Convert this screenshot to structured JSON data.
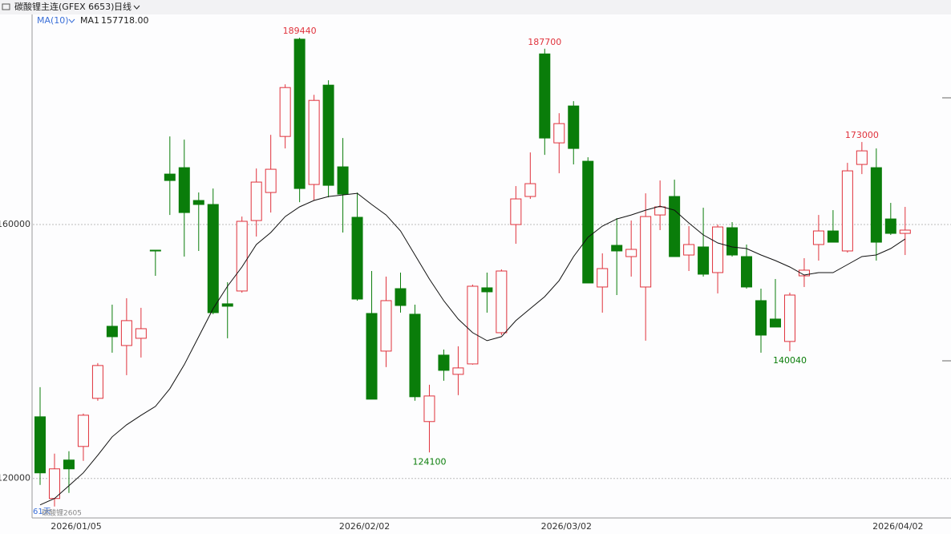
{
  "chart_data": {
    "type": "candlestick",
    "title": "碳酸锂主连(GFEX 6653)",
    "period": "日线",
    "count_label": "61天",
    "contract": "碳酸锂2605",
    "up_color": "#e0323c",
    "down_color": "#0a7d0a",
    "ylim": [
      113900,
      193100
    ],
    "yticks": [
      120000,
      160000
    ],
    "grid": true,
    "categories": [
      "2026/01/05",
      null,
      null,
      null,
      null,
      null,
      null,
      null,
      null,
      null,
      null,
      null,
      null,
      null,
      null,
      null,
      null,
      null,
      null,
      null,
      "2026/02/02",
      null,
      null,
      null,
      null,
      null,
      null,
      null,
      null,
      null,
      null,
      null,
      null,
      null,
      "2026/03/02",
      null,
      null,
      null,
      null,
      null,
      null,
      null,
      null,
      null,
      null,
      null,
      null,
      null,
      null,
      null,
      null,
      null,
      null,
      null,
      null,
      null,
      null,
      "2026/04/02",
      null,
      null,
      null
    ],
    "open": [
      129710,
      116840,
      122900,
      125040,
      132620,
      143970,
      140940,
      142080,
      155960,
      167950,
      168960,
      163790,
      163160,
      147510,
      149530,
      160630,
      165050,
      173880,
      189200,
      166310,
      181960,
      169090,
      161140,
      145990,
      140060,
      149900,
      145870,
      128960,
      139430,
      136400,
      138040,
      150030,
      142960,
      160000,
      164420,
      186880,
      172870,
      178680,
      169970,
      150160,
      156720,
      154950,
      150160,
      161510,
      164420,
      155200,
      156470,
      152430,
      159500,
      154950,
      148010,
      145110,
      141580,
      151920,
      156850,
      158990,
      155840,
      169470,
      168960,
      160880,
      158610
    ],
    "close": [
      120880,
      121510,
      121510,
      129960,
      137790,
      142330,
      144860,
      143590,
      155840,
      166940,
      161890,
      163160,
      146120,
      147130,
      160510,
      166690,
      168710,
      181580,
      165680,
      179560,
      166180,
      164800,
      148260,
      132490,
      148010,
      147250,
      132870,
      132990,
      137030,
      137410,
      150280,
      149400,
      152680,
      164040,
      166440,
      173630,
      175900,
      171990,
      150790,
      153060,
      155840,
      156090,
      161260,
      162780,
      154950,
      156850,
      152180,
      159620,
      155200,
      150160,
      142580,
      143850,
      148890,
      152810,
      158990,
      157220,
      168460,
      171610,
      157220,
      158610,
      159120
    ],
    "high": [
      134380,
      123910,
      124290,
      130220,
      138170,
      147380,
      148390,
      146880,
      155960,
      173880,
      173380,
      165050,
      165680,
      150910,
      161260,
      168830,
      174130,
      182090,
      189440,
      180440,
      182720,
      173630,
      165050,
      152680,
      151800,
      152430,
      147380,
      134760,
      140310,
      140820,
      150540,
      152430,
      152930,
      166060,
      171360,
      187700,
      177540,
      179440,
      170600,
      155460,
      161010,
      160630,
      164920,
      166940,
      167070,
      159750,
      162650,
      160000,
      160380,
      156850,
      149900,
      151420,
      149270,
      154700,
      161510,
      162270,
      169720,
      173000,
      171990,
      163410,
      162780
    ],
    "low": [
      118990,
      115580,
      117720,
      122770,
      132240,
      139810,
      136270,
      139050,
      151920,
      161510,
      154950,
      155840,
      145870,
      142080,
      149270,
      158110,
      161890,
      171990,
      163530,
      163790,
      164290,
      158740,
      148010,
      132490,
      137540,
      146120,
      132240,
      124100,
      135390,
      133120,
      137920,
      146120,
      142580,
      156970,
      164040,
      170980,
      168080,
      169470,
      150790,
      146120,
      148890,
      151800,
      141700,
      159120,
      154950,
      152680,
      151800,
      149150,
      154950,
      149900,
      139810,
      143850,
      140040,
      150160,
      154320,
      157220,
      155580,
      167950,
      154320,
      158360,
      155200
    ],
    "labeled_highs": [
      18,
      35,
      57
    ],
    "labeled_lows": [
      27,
      52
    ],
    "ma": {
      "indicator": "MA(10)",
      "name": "MA1",
      "last_label": "157718.00",
      "color": "#111111",
      "values": [
        115830,
        116840,
        118860,
        120880,
        123650,
        126560,
        128450,
        129960,
        131350,
        134130,
        137920,
        142330,
        146750,
        150280,
        153310,
        156850,
        158740,
        161260,
        162780,
        163790,
        164420,
        164670,
        164920,
        163160,
        161510,
        158990,
        155200,
        151420,
        148010,
        145110,
        142960,
        141700,
        142330,
        144860,
        146750,
        148640,
        151170,
        154950,
        157980,
        159750,
        160880,
        161510,
        162270,
        162900,
        162270,
        160250,
        158360,
        157100,
        156470,
        156210,
        155200,
        154320,
        153310,
        152050,
        152430,
        152430,
        153690,
        154950,
        155200,
        156210,
        157718
      ]
    }
  }
}
